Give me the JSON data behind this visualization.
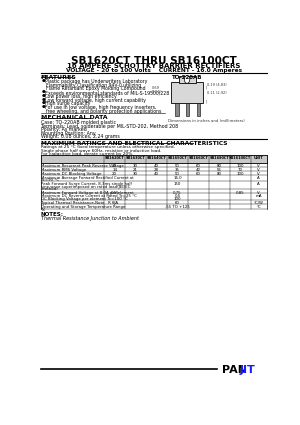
{
  "title": "SB1620CT THRU SB16100CT",
  "subtitle1": "16 AMPERE SCHOTTKY BARRIER RECTIFIERS",
  "subtitle2": "VOLTAGE - 20 to 100 Volts    CURRENT - 16.0 Amperes",
  "features_title": "FEATURES",
  "feature_items": [
    [
      "Plastic package has Underwriters Laboratory",
      true
    ],
    [
      "Flammability Classification 94V-0 utilizing",
      false
    ],
    [
      "Flame Retardant Epoxy Molding Compound",
      false
    ],
    [
      "Exceeds environmental standards of MIL-S-19500/228",
      true
    ],
    [
      "Low power loss, high efficiency",
      true
    ],
    [
      "Low forward voltage, high current capability",
      true
    ],
    [
      "High surge capacity",
      true
    ],
    [
      "For use in low voltage, high frequency inverters,",
      true
    ],
    [
      "free wheeling, and polarity protection applications",
      false
    ]
  ],
  "package_label": "TO-220AB",
  "mech_title": "MECHANICAL DATA",
  "mech_items": [
    "Case: TO-220AB molded plastic",
    "Terminals: Lead, solderable per MIL-STD-202, Method 208",
    "Polarity: As marked",
    "Mounting Position: Any",
    "Weight: 0.08 ounces, 2.24 grams"
  ],
  "max_title": "MAXIMUM RATINGS AND ELECTRICAL CHARACTERISTICS",
  "note1": "Ratings at 25 °C fixed temperature unless otherwise specified.",
  "note2": "Single phase half wave 60Hz, resistive or inductive load.",
  "note3": "For capacitive load, derate current by 20%.",
  "col_headers": [
    "SB1620CT",
    "SB1630CT",
    "SB1640CT",
    "SB1650CT",
    "SB1660CT",
    "SB1680CT",
    "SB16100CT",
    "UNIT"
  ],
  "rows": [
    {
      "param": "Maximum Recurrent Peak Reverse Voltage",
      "vals": [
        "20",
        "30",
        "40",
        "50",
        "60",
        "80",
        "100",
        "V"
      ],
      "span": false
    },
    {
      "param": "Maximum RMS Voltage",
      "vals": [
        "14",
        "21",
        "28",
        "35",
        "42",
        "56",
        "70",
        "V"
      ],
      "span": false
    },
    {
      "param": "Maximum DC Blocking Voltage",
      "vals": [
        "20",
        "30",
        "40",
        "50",
        "60",
        "80",
        "100",
        "V"
      ],
      "span": false
    },
    {
      "param": "Maximum Average Forward Rectified Current at\nTc=90 °C",
      "vals": [
        "",
        "",
        "",
        "16.0",
        "",
        "",
        "",
        "A"
      ],
      "span": true
    },
    {
      "param": "Peak Forward Surge Current, 8.3ms single half\nsine wave superimposed on rated load(JEDEC\nmethod)",
      "vals": [
        "",
        "",
        "",
        "150",
        "",
        "",
        "",
        "A"
      ],
      "span": true
    },
    {
      "param": "Maximum Forward Voltage at 8.0A per element",
      "vals": [
        "0.55",
        "",
        "",
        "0.75",
        "",
        "",
        "0.85",
        "V"
      ],
      "span": false
    },
    {
      "param": "Maximum DC Reverse Current at Rated Tc=25 °C\nDC Blocking Voltage per element Tc=100 °C",
      "vals": [
        "",
        "",
        "",
        "0.5\n100",
        "",
        "",
        "",
        "mA"
      ],
      "span": true
    },
    {
      "param": "Typical Thermal Resistance-Note   R θJA",
      "vals": [
        "",
        "",
        "",
        "60",
        "",
        "",
        "",
        "°C/W"
      ],
      "span": true
    },
    {
      "param": "Operating and Storage Temperature Range\nTs",
      "vals": [
        "",
        "",
        "",
        "-55 TO +125",
        "",
        "",
        "",
        "°C"
      ],
      "span": true
    }
  ],
  "notes_title": "NOTES:",
  "notes_text": "Thermal Resistance Junction to Ambient",
  "bg": "#ffffff",
  "logo_black": "PAN",
  "logo_blue": "JIT"
}
